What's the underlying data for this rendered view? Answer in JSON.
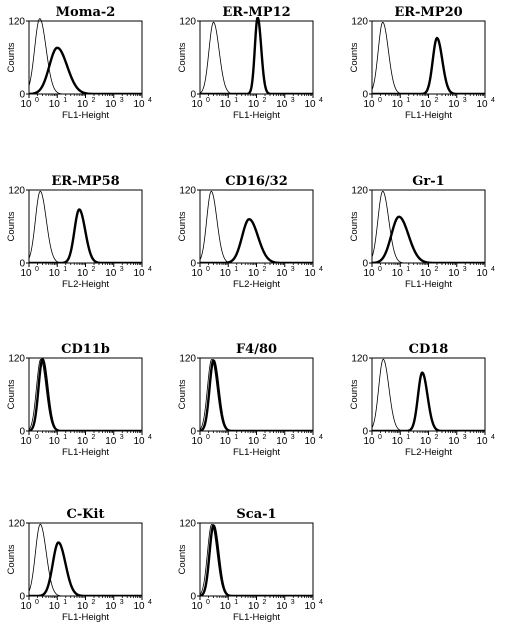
{
  "chart_data": [
    {
      "type": "line",
      "title": "Moma-2",
      "xlabel": "FL1-Height",
      "ylabel": "Counts",
      "xscale": "log",
      "xlim": [
        1,
        10000
      ],
      "ylim": [
        0,
        120
      ],
      "y_ticks": [
        "0",
        "120"
      ],
      "x_ticks": [
        "10",
        "10",
        "10",
        "10",
        "10"
      ],
      "x_tick_exponents": [
        "0",
        "1",
        "2",
        "3",
        "4"
      ],
      "series": [
        {
          "style": "thin",
          "peak_x": 2.4,
          "peak_y": 124,
          "width": 0.18
        },
        {
          "style": "thick",
          "peak_x": 10,
          "peak_y": 76,
          "width": 0.28
        }
      ]
    },
    {
      "type": "line",
      "title": "ER-MP12",
      "xlabel": "FL1-Height",
      "ylabel": "Counts",
      "xscale": "log",
      "xlim": [
        1,
        10000
      ],
      "ylim": [
        0,
        120
      ],
      "y_ticks": [
        "0",
        "120"
      ],
      "x_ticks": [
        "10",
        "10",
        "10",
        "10",
        "10"
      ],
      "x_tick_exponents": [
        "0",
        "1",
        "2",
        "3",
        "4"
      ],
      "series": [
        {
          "style": "thin",
          "peak_x": 3,
          "peak_y": 118,
          "width": 0.16
        },
        {
          "style": "thick",
          "peak_x": 110,
          "peak_y": 126,
          "width": 0.1
        }
      ]
    },
    {
      "type": "line",
      "title": "ER-MP20",
      "xlabel": "FL1-Height",
      "ylabel": "Counts",
      "xscale": "log",
      "xlim": [
        1,
        10000
      ],
      "ylim": [
        0,
        120
      ],
      "y_ticks": [
        "0",
        "120"
      ],
      "x_ticks": [
        "10",
        "10",
        "10",
        "10",
        "10"
      ],
      "x_tick_exponents": [
        "0",
        "1",
        "2",
        "3",
        "4"
      ],
      "series": [
        {
          "style": "thin",
          "peak_x": 2.4,
          "peak_y": 118,
          "width": 0.16
        },
        {
          "style": "thick",
          "peak_x": 200,
          "peak_y": 92,
          "width": 0.15
        }
      ]
    },
    {
      "type": "line",
      "title": "ER-MP58",
      "xlabel": "FL2-Height",
      "ylabel": "Counts",
      "xscale": "log",
      "xlim": [
        1,
        10000
      ],
      "ylim": [
        0,
        120
      ],
      "y_ticks": [
        "0",
        "120"
      ],
      "x_ticks": [
        "10",
        "10",
        "10",
        "10",
        "10"
      ],
      "x_tick_exponents": [
        "0",
        "1",
        "2",
        "3",
        "4"
      ],
      "series": [
        {
          "style": "thin",
          "peak_x": 2.5,
          "peak_y": 118,
          "width": 0.17
        },
        {
          "style": "thick",
          "peak_x": 60,
          "peak_y": 88,
          "width": 0.17
        }
      ]
    },
    {
      "type": "line",
      "title": "CD16/32",
      "xlabel": "FL2-Height",
      "ylabel": "Counts",
      "xscale": "log",
      "xlim": [
        1,
        10000
      ],
      "ylim": [
        0,
        120
      ],
      "y_ticks": [
        "0",
        "120"
      ],
      "x_ticks": [
        "10",
        "10",
        "10",
        "10",
        "10"
      ],
      "x_tick_exponents": [
        "0",
        "1",
        "2",
        "3",
        "4"
      ],
      "series": [
        {
          "style": "thin",
          "peak_x": 2.5,
          "peak_y": 118,
          "width": 0.16
        },
        {
          "style": "thick",
          "peak_x": 55,
          "peak_y": 72,
          "width": 0.25
        }
      ]
    },
    {
      "type": "line",
      "title": "Gr-1",
      "xlabel": "FL1-Height",
      "ylabel": "Counts",
      "xscale": "log",
      "xlim": [
        1,
        10000
      ],
      "ylim": [
        0,
        120
      ],
      "y_ticks": [
        "0",
        "120"
      ],
      "x_ticks": [
        "10",
        "10",
        "10",
        "10",
        "10"
      ],
      "x_tick_exponents": [
        "0",
        "1",
        "2",
        "3",
        "4"
      ],
      "series": [
        {
          "style": "thin",
          "peak_x": 2.4,
          "peak_y": 118,
          "width": 0.17
        },
        {
          "style": "thick",
          "peak_x": 9,
          "peak_y": 76,
          "width": 0.27
        }
      ]
    },
    {
      "type": "line",
      "title": "CD11b",
      "xlabel": "FL1-Height",
      "ylabel": "Counts",
      "xscale": "log",
      "xlim": [
        1,
        10000
      ],
      "ylim": [
        0,
        120
      ],
      "y_ticks": [
        "0",
        "120"
      ],
      "x_ticks": [
        "10",
        "10",
        "10",
        "10",
        "10"
      ],
      "x_tick_exponents": [
        "0",
        "1",
        "2",
        "3",
        "4"
      ],
      "series": [
        {
          "style": "thin",
          "peak_x": 2.6,
          "peak_y": 118,
          "width": 0.15
        },
        {
          "style": "thick",
          "peak_x": 3,
          "peak_y": 118,
          "width": 0.14
        }
      ]
    },
    {
      "type": "line",
      "title": "F4/80",
      "xlabel": "FL1-Height",
      "ylabel": "Counts",
      "xscale": "log",
      "xlim": [
        1,
        10000
      ],
      "ylim": [
        0,
        120
      ],
      "y_ticks": [
        "0",
        "120"
      ],
      "x_ticks": [
        "10",
        "10",
        "10",
        "10",
        "10"
      ],
      "x_tick_exponents": [
        "0",
        "1",
        "2",
        "3",
        "4"
      ],
      "series": [
        {
          "style": "thin",
          "peak_x": 2.6,
          "peak_y": 118,
          "width": 0.15
        },
        {
          "style": "thick",
          "peak_x": 3,
          "peak_y": 116,
          "width": 0.14
        }
      ]
    },
    {
      "type": "line",
      "title": "CD18",
      "xlabel": "FL2-Height",
      "ylabel": "Counts",
      "xscale": "log",
      "xlim": [
        1,
        10000
      ],
      "ylim": [
        0,
        120
      ],
      "y_ticks": [
        "0",
        "120"
      ],
      "x_ticks": [
        "10",
        "10",
        "10",
        "10",
        "10"
      ],
      "x_tick_exponents": [
        "0",
        "1",
        "2",
        "3",
        "4"
      ],
      "series": [
        {
          "style": "thin",
          "peak_x": 2.5,
          "peak_y": 118,
          "width": 0.16
        },
        {
          "style": "thick",
          "peak_x": 60,
          "peak_y": 96,
          "width": 0.15
        }
      ]
    },
    {
      "type": "line",
      "title": "C-Kit",
      "xlabel": "FL1-Height",
      "ylabel": "Counts",
      "xscale": "log",
      "xlim": [
        1,
        10000
      ],
      "ylim": [
        0,
        120
      ],
      "y_ticks": [
        "0",
        "120"
      ],
      "x_ticks": [
        "10",
        "10",
        "10",
        "10",
        "10"
      ],
      "x_tick_exponents": [
        "0",
        "1",
        "2",
        "3",
        "4"
      ],
      "series": [
        {
          "style": "thin",
          "peak_x": 2.5,
          "peak_y": 118,
          "width": 0.17
        },
        {
          "style": "thick",
          "peak_x": 11,
          "peak_y": 88,
          "width": 0.2
        }
      ]
    },
    {
      "type": "line",
      "title": "Sca-1",
      "xlabel": "FL1-Height",
      "ylabel": "Counts",
      "xscale": "log",
      "xlim": [
        1,
        10000
      ],
      "ylim": [
        0,
        120
      ],
      "y_ticks": [
        "0",
        "120"
      ],
      "x_ticks": [
        "10",
        "10",
        "10",
        "10",
        "10"
      ],
      "x_tick_exponents": [
        "0",
        "1",
        "2",
        "3",
        "4"
      ],
      "series": [
        {
          "style": "thin",
          "peak_x": 2.6,
          "peak_y": 118,
          "width": 0.15
        },
        {
          "style": "thick",
          "peak_x": 3,
          "peak_y": 116,
          "width": 0.14
        }
      ]
    }
  ]
}
